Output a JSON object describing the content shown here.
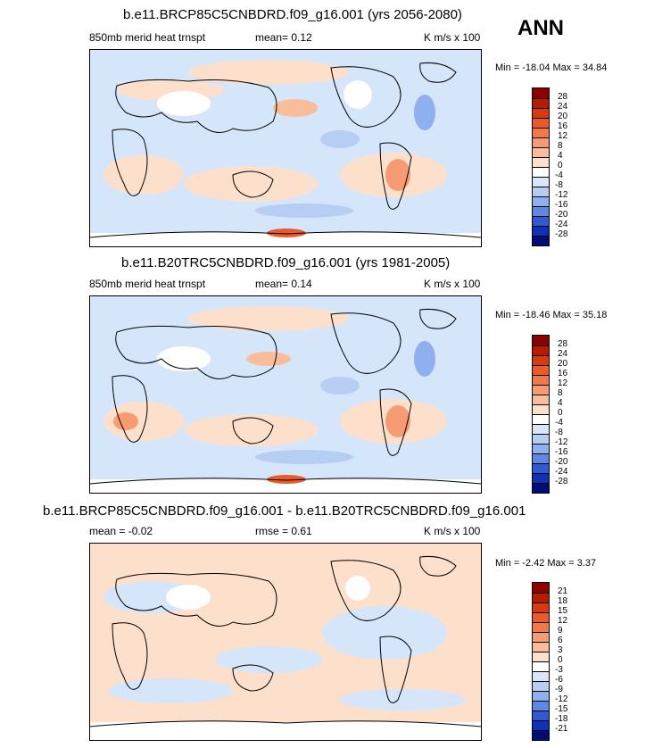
{
  "season": "ANN",
  "panels": [
    {
      "title": "b.e11.BRCP85C5CNBDRD.f09_g16.001 (yrs 2056-2080)",
      "left_label": "850mb merid heat trnspt",
      "center_label": "mean=   0.12",
      "right_label": "K m/s x 100",
      "minmax": "Min = -18.04 Max =  34.84",
      "colorbar_labels": [
        "28",
        "24",
        "20",
        "16",
        "12",
        "8",
        "4",
        "0",
        "-4",
        "-8",
        "-12",
        "-16",
        "-20",
        "-24",
        "-28"
      ],
      "colorbar_colors": [
        "#8c0000",
        "#b81c00",
        "#d63a10",
        "#ea5a2a",
        "#f27a4a",
        "#f79c72",
        "#fabd9c",
        "#fde0cc",
        "#ffffff",
        "#d8e6fa",
        "#b6cdf4",
        "#8fb0ee",
        "#5f87e4",
        "#3059d4",
        "#1030b8",
        "#000c78"
      ]
    },
    {
      "title": "b.e11.B20TRC5CNBDRD.f09_g16.001 (yrs 1981-2005)",
      "left_label": "850mb merid heat trnspt",
      "center_label": "mean=   0.14",
      "right_label": "K m/s x 100",
      "minmax": "Min = -18.46 Max =  35.18",
      "colorbar_labels": [
        "28",
        "24",
        "20",
        "16",
        "12",
        "8",
        "4",
        "0",
        "-4",
        "-8",
        "-12",
        "-16",
        "-20",
        "-24",
        "-28"
      ],
      "colorbar_colors": [
        "#8c0000",
        "#b81c00",
        "#d63a10",
        "#ea5a2a",
        "#f27a4a",
        "#f79c72",
        "#fabd9c",
        "#fde0cc",
        "#ffffff",
        "#d8e6fa",
        "#b6cdf4",
        "#8fb0ee",
        "#5f87e4",
        "#3059d4",
        "#1030b8",
        "#000c78"
      ]
    },
    {
      "title": "b.e11.BRCP85C5CNBDRD.f09_g16.001 - b.e11.B20TRC5CNBDRD.f09_g16.001",
      "left_label": "mean =  -0.02",
      "center_label": "rmse =   0.61",
      "right_label": "K m/s x 100",
      "minmax": "Min =  -2.42 Max =   3.37",
      "colorbar_labels": [
        "21",
        "18",
        "15",
        "12",
        "9",
        "6",
        "3",
        "0",
        "-3",
        "-6",
        "-9",
        "-12",
        "-15",
        "-18",
        "-21"
      ],
      "colorbar_colors": [
        "#8c0000",
        "#b81c00",
        "#d63a10",
        "#ea5a2a",
        "#f27a4a",
        "#f79c72",
        "#fabd9c",
        "#fde0cc",
        "#ffffff",
        "#d8e6fa",
        "#b6cdf4",
        "#8fb0ee",
        "#5f87e4",
        "#3059d4",
        "#1030b8",
        "#000c78"
      ]
    }
  ],
  "chart_data": [
    {
      "type": "heatmap",
      "title": "b.e11.BRCP85C5CNBDRD.f09_g16.001 (yrs 2056-2080)",
      "variable": "850mb merid heat trnspt",
      "units": "K m/s x 100",
      "mean": 0.12,
      "min": -18.04,
      "max": 34.84,
      "levels": [
        -28,
        -24,
        -20,
        -16,
        -12,
        -8,
        -4,
        0,
        4,
        8,
        12,
        16,
        20,
        24,
        28
      ]
    },
    {
      "type": "heatmap",
      "title": "b.e11.B20TRC5CNBDRD.f09_g16.001 (yrs 1981-2005)",
      "variable": "850mb merid heat trnspt",
      "units": "K m/s x 100",
      "mean": 0.14,
      "min": -18.46,
      "max": 35.18,
      "levels": [
        -28,
        -24,
        -20,
        -16,
        -12,
        -8,
        -4,
        0,
        4,
        8,
        12,
        16,
        20,
        24,
        28
      ]
    },
    {
      "type": "heatmap",
      "title": "b.e11.BRCP85C5CNBDRD.f09_g16.001 - b.e11.B20TRC5CNBDRD.f09_g16.001",
      "units": "K m/s x 100",
      "mean": -0.02,
      "rmse": 0.61,
      "min": -2.42,
      "max": 3.37,
      "levels": [
        -21,
        -18,
        -15,
        -12,
        -9,
        -6,
        -3,
        0,
        3,
        6,
        9,
        12,
        15,
        18,
        21
      ]
    }
  ]
}
